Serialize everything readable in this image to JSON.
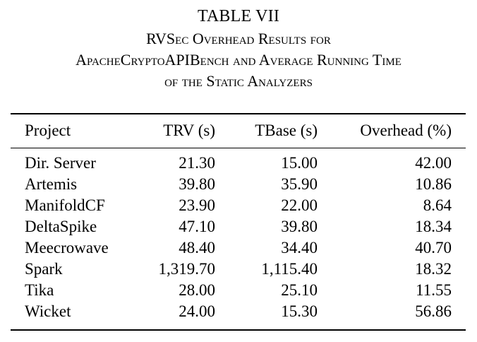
{
  "table": {
    "label": "TABLE VII",
    "title_lines": [
      "RVSec Overhead Results for",
      "ApacheCryptoAPIBench and Average Running Time",
      "of the Static Analyzers"
    ],
    "headers": [
      "Project",
      "TRV (s)",
      "TBase (s)",
      "Overhead (%)"
    ],
    "rows": [
      [
        "Dir. Server",
        "21.30",
        "15.00",
        "42.00"
      ],
      [
        "Artemis",
        "39.80",
        "35.90",
        "10.86"
      ],
      [
        "ManifoldCF",
        "23.90",
        "22.00",
        "8.64"
      ],
      [
        "DeltaSpike",
        "47.10",
        "39.80",
        "18.34"
      ],
      [
        "Meecrowave",
        "48.40",
        "34.40",
        "40.70"
      ],
      [
        "Spark",
        "1,319.70",
        "1,115.40",
        "18.32"
      ],
      [
        "Tika",
        "28.00",
        "25.10",
        "11.55"
      ],
      [
        "Wicket",
        "24.00",
        "15.30",
        "56.86"
      ]
    ]
  }
}
